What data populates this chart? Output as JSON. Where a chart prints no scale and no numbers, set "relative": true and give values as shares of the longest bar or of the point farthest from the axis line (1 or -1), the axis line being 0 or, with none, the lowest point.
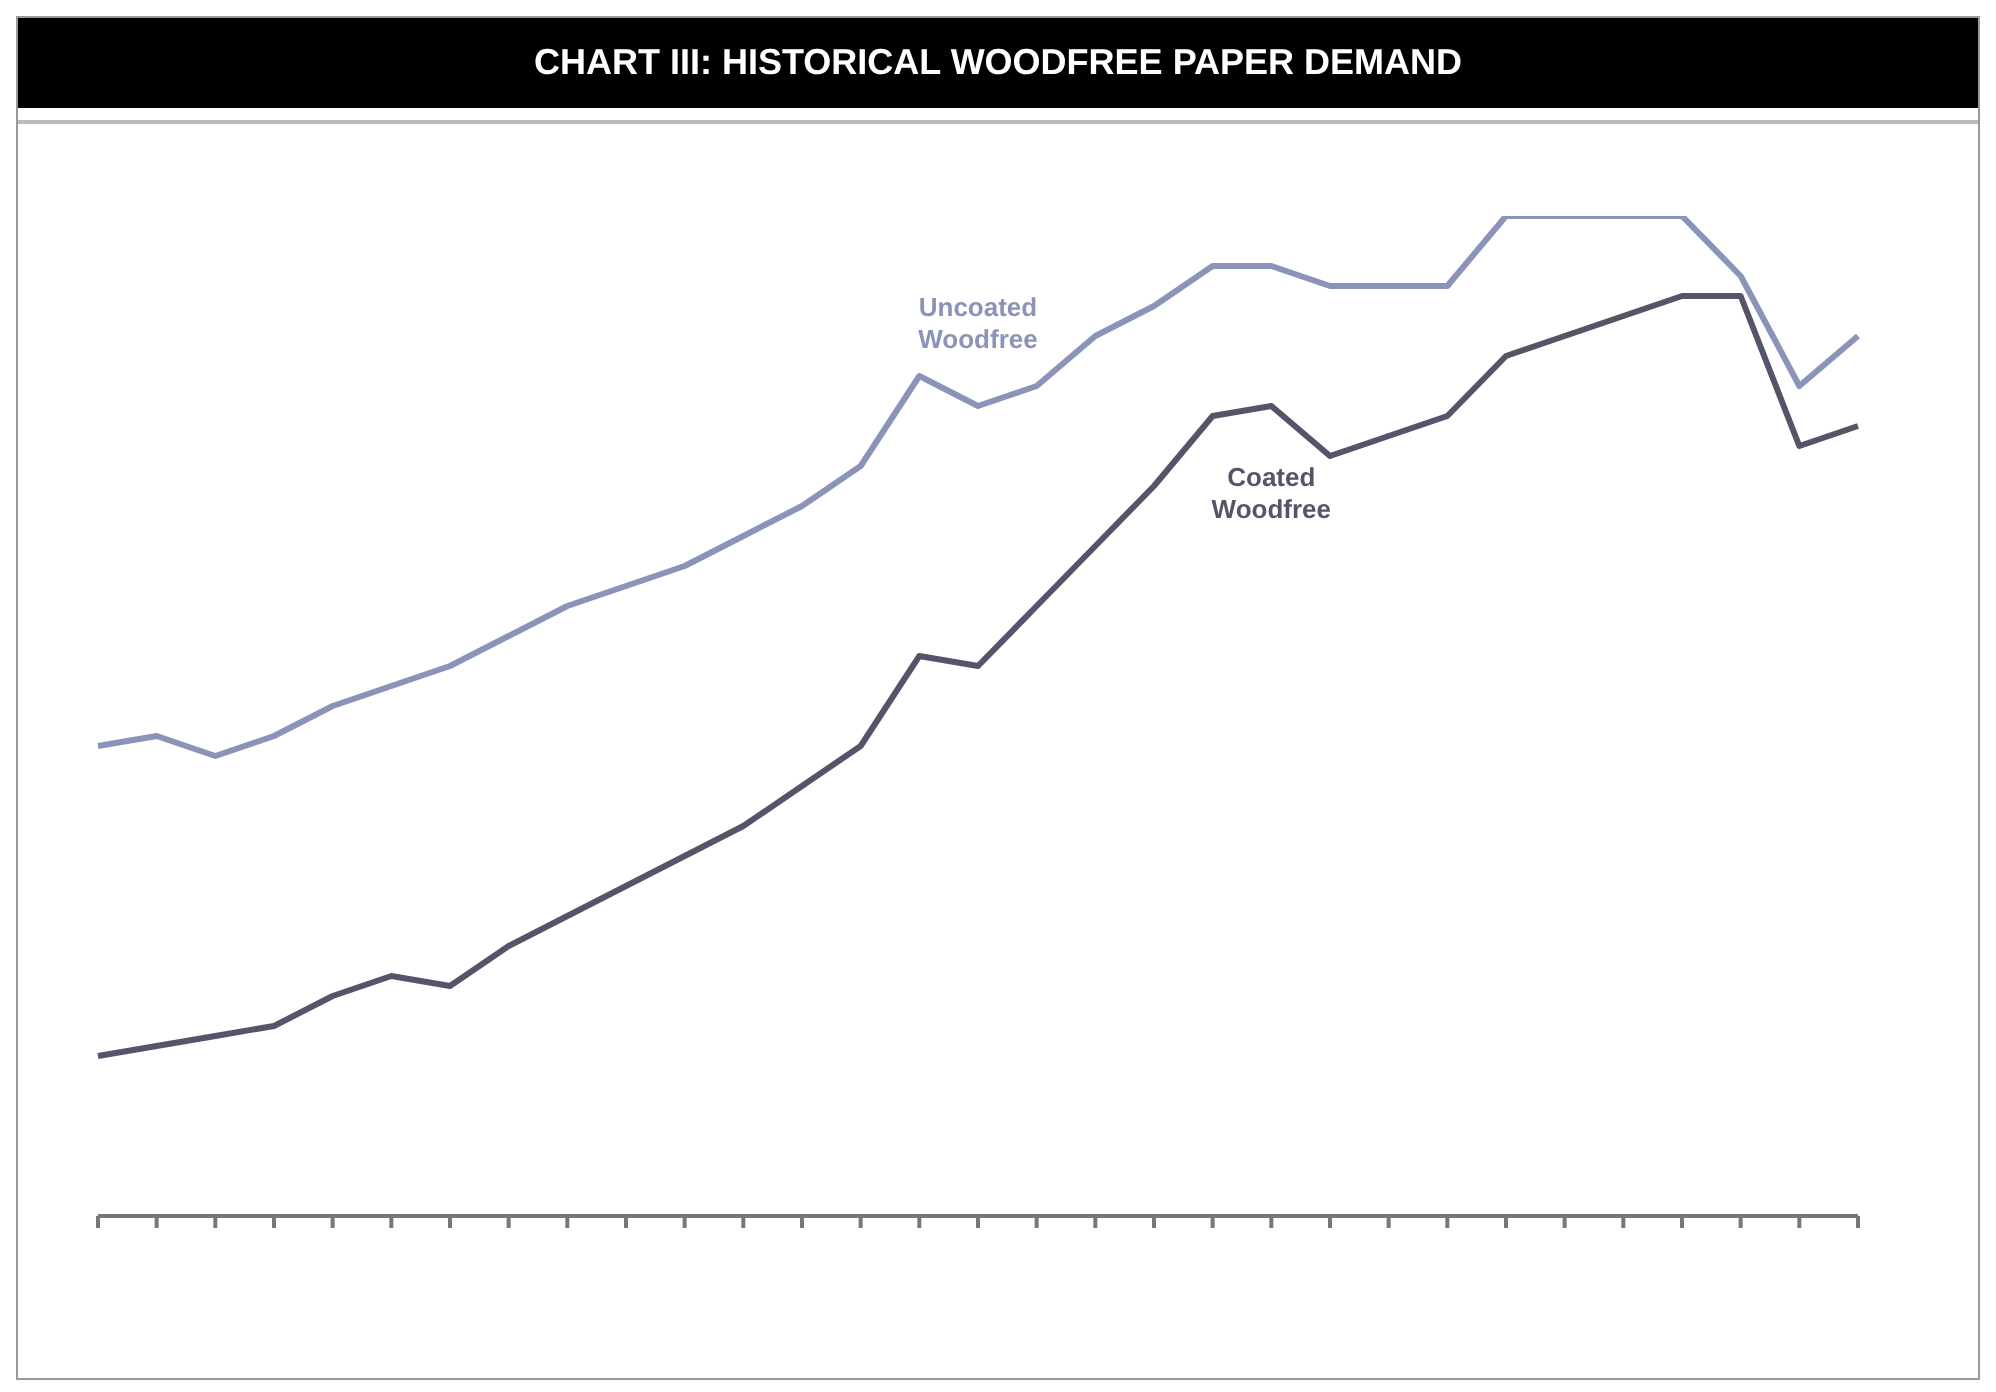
{
  "chart_data": {
    "type": "line",
    "title": "CHART III: HISTORICAL WOODFREE PAPER DEMAND",
    "relative": true,
    "legend": false,
    "grid": false,
    "marker": "none",
    "line_style": "solid",
    "categories": [
      null,
      null,
      null,
      null,
      null,
      null,
      null,
      null,
      null,
      null,
      null,
      null,
      null,
      null,
      null,
      null,
      null,
      null,
      null,
      null,
      null,
      null,
      null,
      null,
      null,
      null,
      null,
      null,
      null,
      null,
      null
    ],
    "series": [
      {
        "name": "Uncoated Woodfree",
        "color": "#8a93b8",
        "values": [
          0.47,
          0.48,
          0.46,
          0.48,
          0.51,
          0.53,
          0.55,
          0.58,
          0.61,
          0.63,
          0.65,
          0.68,
          0.71,
          0.75,
          0.84,
          0.81,
          0.83,
          0.88,
          0.91,
          0.95,
          0.95,
          0.93,
          0.93,
          0.93,
          1,
          1,
          1,
          1,
          0.94,
          0.83,
          0.88
        ]
      },
      {
        "name": "Coated Woodfree",
        "color": "#55556a",
        "values": [
          0.16,
          0.17,
          0.18,
          0.19,
          0.22,
          0.24,
          0.23,
          0.27,
          0.3,
          0.33,
          0.36,
          0.39,
          0.43,
          0.47,
          0.56,
          0.55,
          0.61,
          0.67,
          0.73,
          0.8,
          0.81,
          0.76,
          0.78,
          0.8,
          0.86,
          0.88,
          0.9,
          0.92,
          0.92,
          0.77,
          0.79
        ]
      }
    ]
  }
}
